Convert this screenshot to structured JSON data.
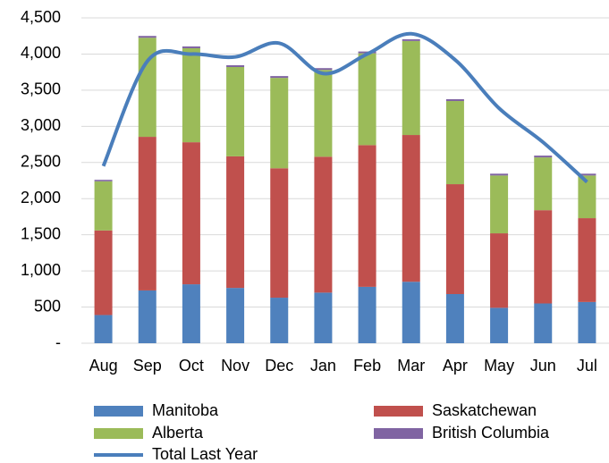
{
  "chart_data": {
    "type": "bar",
    "stacked": true,
    "categories": [
      "Aug",
      "Sep",
      "Oct",
      "Nov",
      "Dec",
      "Jan",
      "Feb",
      "Mar",
      "Apr",
      "May",
      "Jun",
      "Jul"
    ],
    "series": [
      {
        "name": "Manitoba",
        "color": "#4f81bd",
        "type": "bar",
        "values": [
          390,
          730,
          815,
          765,
          630,
          700,
          780,
          850,
          680,
          490,
          550,
          570
        ]
      },
      {
        "name": "Saskatchewan",
        "color": "#c0504d",
        "type": "bar",
        "values": [
          1170,
          2125,
          1965,
          1820,
          1790,
          1880,
          1960,
          2030,
          1520,
          1030,
          1290,
          1160
        ]
      },
      {
        "name": "Alberta",
        "color": "#9bbb59",
        "type": "bar",
        "values": [
          680,
          1370,
          1300,
          1235,
          1250,
          1200,
          1270,
          1300,
          1150,
          800,
          730,
          590
        ]
      },
      {
        "name": "British Columbia",
        "color": "#8064a2",
        "type": "bar",
        "values": [
          20,
          25,
          25,
          25,
          25,
          25,
          25,
          25,
          25,
          25,
          25,
          25
        ]
      },
      {
        "name": "Total Last Year",
        "color": "#4a7ebb",
        "type": "line",
        "values": [
          2450,
          3900,
          4000,
          3960,
          4150,
          3730,
          4000,
          4280,
          3920,
          3250,
          2780,
          2230
        ]
      }
    ],
    "ylim": [
      0,
      4500
    ],
    "yticks": [
      {
        "value": 0,
        "label": "-"
      },
      500,
      {
        "value": 1000,
        "label": "1,000"
      },
      {
        "value": 1500,
        "label": "1,500"
      },
      {
        "value": 2000,
        "label": "2,000"
      },
      {
        "value": 2500,
        "label": "2,500"
      },
      {
        "value": 3000,
        "label": "3,000"
      },
      {
        "value": 3500,
        "label": "3,500"
      },
      {
        "value": 4000,
        "label": "4,000"
      },
      {
        "value": 4500,
        "label": "4,500"
      }
    ],
    "grid": true,
    "legend": "bottom"
  }
}
